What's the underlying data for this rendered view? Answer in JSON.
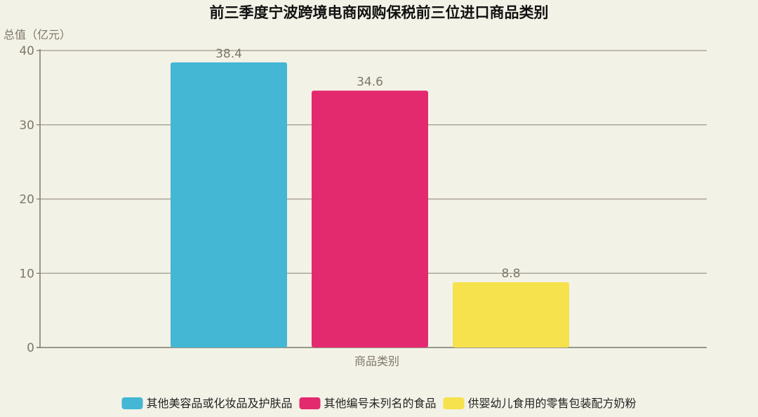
{
  "chart_data": {
    "type": "bar",
    "title": "前三季度宁波跨境电商网购保税前三位进口商品类别",
    "ylabel": "总值（亿元）",
    "categories": [
      "商品类别"
    ],
    "ylim": [
      0,
      40
    ],
    "yticks": [
      0,
      10,
      20,
      30,
      40
    ],
    "grid": true,
    "legend_position": "bottom",
    "series": [
      {
        "name": "其他美容品或化妆品及护肤品",
        "values": [
          38.4
        ],
        "color": "#43b7d4"
      },
      {
        "name": "其他编号未列名的食品",
        "values": [
          34.6
        ],
        "color": "#e42a6f"
      },
      {
        "name": "供婴幼儿食用的零售包装配方奶粉",
        "values": [
          8.8
        ],
        "color": "#f5e24d"
      }
    ]
  }
}
